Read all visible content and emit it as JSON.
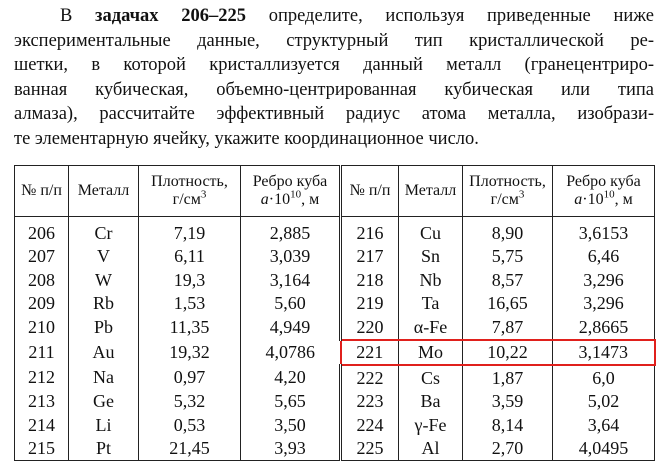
{
  "paragraph": {
    "first": {
      "prefix": "В",
      "bold": "задачах 206–225",
      "rest": "определите, используя приведенные ниже"
    },
    "lines": [
      "экспериментальные данные, структурный тип кристаллической ре-",
      "шетки, в которой кристаллизуется данный металл (гранецентриро-",
      "ванная кубическая, объемно-центрированная кубическая или типа",
      "алмаза), рассчитайте эффективный радиус атома металла, изобрази-",
      "те элементарную ячейку, укажите координационное число."
    ]
  },
  "table": {
    "header": {
      "num": "№ п/п",
      "metal": "Металл",
      "density": {
        "text": "Плотность, г/см",
        "sup": "3"
      },
      "edge": {
        "line1": "Ребро куба",
        "a": "a",
        "mult": "·10",
        "sup": "10",
        "unit": ", м"
      }
    },
    "left": [
      [
        "206",
        "Cr",
        "7,19",
        "2,885"
      ],
      [
        "207",
        "V",
        "6,11",
        "3,039"
      ],
      [
        "208",
        "W",
        "19,3",
        "3,164"
      ],
      [
        "209",
        "Rb",
        "1,53",
        "5,60"
      ],
      [
        "210",
        "Pb",
        "11,35",
        "4,949"
      ],
      [
        "211",
        "Au",
        "19,32",
        "4,0786"
      ],
      [
        "212",
        "Na",
        "0,97",
        "4,20"
      ],
      [
        "213",
        "Ge",
        "5,32",
        "5,65"
      ],
      [
        "214",
        "Li",
        "0,53",
        "3,50"
      ],
      [
        "215",
        "Pt",
        "21,45",
        "3,93"
      ]
    ],
    "right": [
      [
        "216",
        "Cu",
        "8,90",
        "3,6153"
      ],
      [
        "217",
        "Sn",
        "5,75",
        "6,46"
      ],
      [
        "218",
        "Nb",
        "8,57",
        "3,296"
      ],
      [
        "219",
        "Ta",
        "16,65",
        "3,296"
      ],
      [
        "220",
        "α-Fe",
        "7,87",
        "2,8665"
      ],
      [
        "221",
        "Mo",
        "10,22",
        "3,1473"
      ],
      [
        "222",
        "Cs",
        "1,87",
        "6,0"
      ],
      [
        "223",
        "Ba",
        "3,59",
        "5,02"
      ],
      [
        "224",
        "γ-Fe",
        "8,14",
        "3,64"
      ],
      [
        "225",
        "Al",
        "2,70",
        "4,0495"
      ]
    ]
  }
}
